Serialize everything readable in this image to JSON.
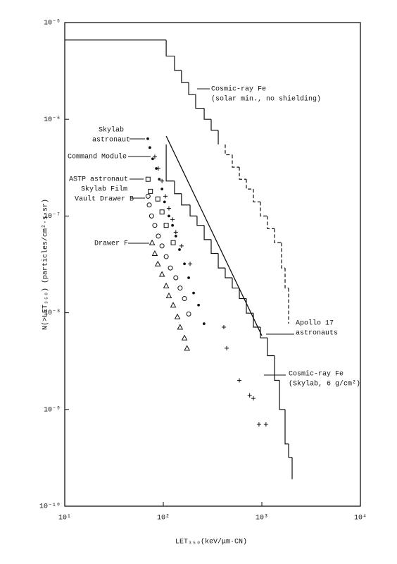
{
  "chart_data": {
    "type": "line",
    "xlabel": "LET₃₅₀(keV/μm·CN)",
    "ylabel": "N(>LET₃₅₀) (particles/cm²·s·sr)",
    "xscale": "log",
    "yscale": "log",
    "xlim": [
      10,
      10000
    ],
    "ylim": [
      1e-10,
      1e-05
    ],
    "xticks": [
      {
        "value": 10,
        "label": "10¹"
      },
      {
        "value": 100,
        "label": "10²"
      },
      {
        "value": 1000,
        "label": "10³"
      },
      {
        "value": 10000,
        "label": "10⁴"
      }
    ],
    "yticks": [
      {
        "value": 1e-10,
        "label": "10⁻¹⁰"
      },
      {
        "value": 1e-09,
        "label": "10⁻⁹"
      },
      {
        "value": 1e-08,
        "label": "10⁻⁸"
      },
      {
        "value": 1e-07,
        "label": "10⁻⁷"
      },
      {
        "value": 1e-06,
        "label": "10⁻⁶"
      },
      {
        "value": 1e-05,
        "label": "10⁻⁵"
      }
    ],
    "color": "#111111",
    "series": [
      {
        "style": "step",
        "dash": false,
        "x": [
          10,
          107,
          130,
          153,
          181,
          213,
          260,
          306,
          361
        ],
        "values": [
          6.6e-06,
          4.5e-06,
          3.2e-06,
          2.4e-06,
          1.8e-06,
          1.3e-06,
          1e-06,
          7.7e-07,
          5.5e-07
        ]
      },
      {
        "style": "step",
        "dash": true,
        "x": [
          425,
          501,
          591,
          696,
          821,
          967,
          1140,
          1345,
          1585,
          1721,
          1868
        ],
        "values": [
          4.3e-07,
          3.2e-07,
          2.4e-07,
          1.9e-07,
          1.4e-07,
          1e-07,
          7.4e-08,
          5.3e-08,
          2.9e-08,
          1.8e-08,
          7.7e-09
        ]
      },
      {
        "style": "step",
        "dash": false,
        "x": [
          107,
          107,
          130,
          153,
          187,
          220,
          260,
          306,
          361,
          425,
          501,
          591,
          696,
          821,
          967,
          1140,
          1345,
          1510,
          1721,
          1868,
          2029
        ],
        "values": [
          5.5e-07,
          2.3e-07,
          1.7e-07,
          1.3e-07,
          1e-07,
          8e-08,
          5.7e-08,
          4.1e-08,
          2.9e-08,
          2.3e-08,
          1.8e-08,
          1.4e-08,
          9.9e-09,
          7.1e-09,
          5.5e-09,
          3.6e-09,
          2e-09,
          1e-09,
          4.4e-10,
          3.2e-10,
          1.9e-10
        ]
      },
      {
        "style": "line",
        "dash": false,
        "x": [
          107,
          1000
        ],
        "values": [
          6.7e-07,
          5.8e-09
        ]
      },
      {
        "style": "scatter",
        "marker": "dot",
        "x": [
          69.6,
          73,
          78,
          85,
          91,
          97,
          103,
          114,
          124,
          134,
          146,
          164,
          181,
          203,
          228,
          259
        ],
        "values": [
          6.3e-07,
          5.1e-07,
          3.9e-07,
          3.1e-07,
          2.4e-07,
          1.9e-07,
          1.4e-07,
          1e-07,
          8e-08,
          6.2e-08,
          4.5e-08,
          3.2e-08,
          2.3e-08,
          1.6e-08,
          1.2e-08,
          7.7e-09
        ]
      },
      {
        "style": "scatter",
        "marker": "plus",
        "x": [
          82,
          89,
          97,
          105,
          114,
          124,
          134,
          153,
          187,
          411,
          440,
          591,
          752,
          821,
          935,
          1101
        ],
        "values": [
          4.1e-07,
          3.1e-07,
          2.3e-07,
          1.6e-07,
          1.2e-07,
          9.2e-08,
          6.8e-08,
          4.9e-08,
          3.2e-08,
          7.1e-09,
          4.3e-09,
          2e-09,
          1.4e-09,
          1.3e-09,
          7e-10,
          7e-10
        ]
      },
      {
        "style": "scatter",
        "marker": "square",
        "x": [
          70,
          74,
          88,
          97,
          107,
          126
        ],
        "values": [
          2.4e-07,
          1.8e-07,
          1.5e-07,
          1.1e-07,
          8e-08,
          5.3e-08
        ]
      },
      {
        "style": "scatter",
        "marker": "circle",
        "x": [
          70,
          72,
          76,
          82,
          89,
          97,
          107,
          118,
          134,
          148,
          164,
          181
        ],
        "values": [
          1.6e-07,
          1.3e-07,
          1e-07,
          8e-08,
          6.2e-08,
          4.9e-08,
          3.8e-08,
          2.9e-08,
          2.3e-08,
          1.8e-08,
          1.4e-08,
          9.7e-09
        ]
      },
      {
        "style": "scatter",
        "marker": "triangle",
        "x": [
          77,
          82,
          88,
          97,
          107,
          114,
          126,
          139,
          148,
          164,
          174
        ],
        "values": [
          5.3e-08,
          4.1e-08,
          3.2e-08,
          2.5e-08,
          1.9e-08,
          1.5e-08,
          1.2e-08,
          9.1e-09,
          7.1e-09,
          5.5e-09,
          4.3e-09
        ]
      }
    ],
    "annotations": [
      {
        "lines": [
          "Cosmic-ray Fe",
          "(solar min., no shielding)"
        ]
      },
      {
        "lines": [
          "Skylab",
          "astronaut"
        ]
      },
      {
        "lines": [
          "Command Module"
        ]
      },
      {
        "lines": [
          "ASTP astronaut"
        ]
      },
      {
        "lines": [
          "Skylab Film",
          "Vault Drawer B"
        ]
      },
      {
        "lines": [
          "Drawer F"
        ]
      },
      {
        "lines": [
          "Apollo 17",
          "astronauts"
        ]
      },
      {
        "lines": [
          "Cosmic-ray Fe",
          "(Skylab, 6 g/cm²)"
        ]
      }
    ]
  }
}
